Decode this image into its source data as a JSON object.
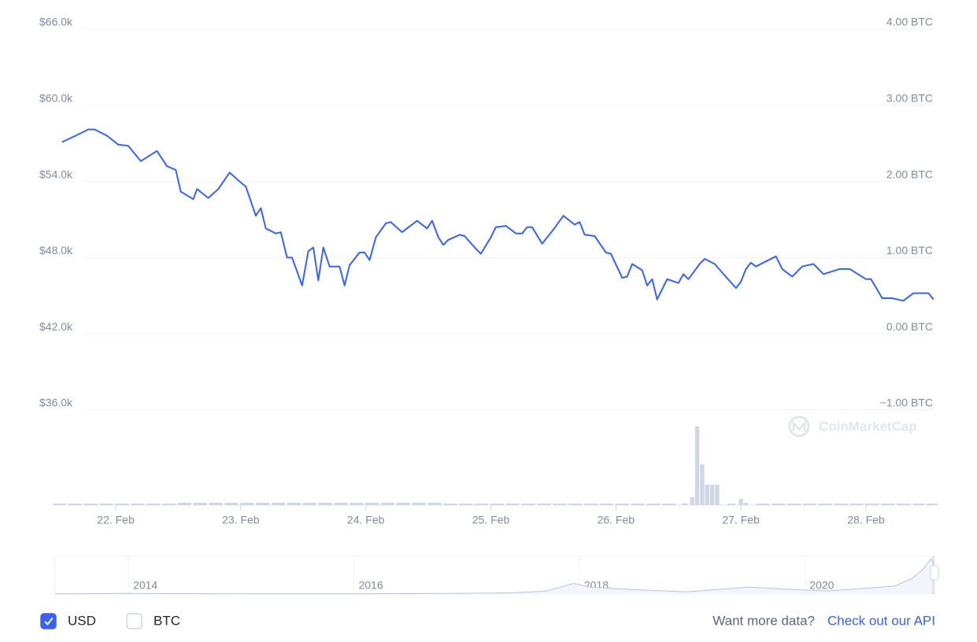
{
  "chart_data": [
    {
      "type": "line",
      "x": [
        21.57,
        21.7,
        21.78,
        21.83,
        21.93,
        22.02,
        22.1,
        22.2,
        22.33,
        22.41,
        22.48,
        22.52,
        22.62,
        22.65,
        22.74,
        22.82,
        22.91,
        22.99,
        23.04,
        23.12,
        23.16,
        23.2,
        23.28,
        23.32,
        23.37,
        23.41,
        23.49,
        23.54,
        23.58,
        23.62,
        23.66,
        23.71,
        23.79,
        23.83,
        23.87,
        23.95,
        23.99,
        24.03,
        24.08,
        24.16,
        24.2,
        24.29,
        24.41,
        24.49,
        24.53,
        24.58,
        24.62,
        24.66,
        24.75,
        24.79,
        24.87,
        24.92,
        25.0,
        25.04,
        25.12,
        25.2,
        25.25,
        25.29,
        25.33,
        25.41,
        25.5,
        25.58,
        25.67,
        25.71,
        25.75,
        25.83,
        25.92,
        25.96,
        26.05,
        26.09,
        26.13,
        26.21,
        26.25,
        26.29,
        26.33,
        26.41,
        26.5,
        26.54,
        26.58,
        26.67,
        26.71,
        26.79,
        26.87,
        26.96,
        27.0,
        27.04,
        27.08,
        27.12,
        27.2,
        27.28,
        27.33,
        27.41,
        27.49,
        27.58,
        27.66,
        27.79,
        27.87,
        28.0,
        28.04,
        28.13,
        28.21,
        28.3,
        28.38,
        28.46,
        28.5,
        28.54
      ],
      "series": [
        {
          "color": "#3861fb",
          "values": [
            57100,
            57700,
            58100,
            58100,
            57600,
            56900,
            56800,
            55600,
            56400,
            55200,
            54900,
            53200,
            52600,
            53400,
            52700,
            53400,
            54700,
            54000,
            53600,
            51300,
            51900,
            50300,
            49900,
            50000,
            48000,
            48000,
            45800,
            48500,
            48800,
            46200,
            48800,
            47300,
            47300,
            45800,
            47400,
            48400,
            48400,
            47800,
            49600,
            50700,
            50800,
            50000,
            50900,
            50300,
            50900,
            49600,
            49000,
            49400,
            49800,
            49700,
            48800,
            48300,
            49600,
            50400,
            50500,
            49900,
            49900,
            50400,
            50400,
            49100,
            50200,
            51300,
            50600,
            50800,
            49800,
            49700,
            48400,
            48300,
            46400,
            46500,
            47500,
            47000,
            45800,
            46300,
            44700,
            46300,
            46000,
            46700,
            46300,
            47500,
            47900,
            47500,
            46600,
            45600,
            46100,
            47100,
            47600,
            47300,
            47700,
            48100,
            47100,
            46500,
            47300,
            47500,
            46700,
            47100,
            47100,
            46300,
            46300,
            44800,
            44800,
            44600,
            45200,
            45200,
            45200,
            44700
          ]
        }
      ],
      "xlim": [
        21.515,
        28.548
      ],
      "xticks": [
        {
          "value": 22,
          "label": "22. Feb"
        },
        {
          "value": 23,
          "label": "23. Feb"
        },
        {
          "value": 24,
          "label": "24. Feb"
        },
        {
          "value": 25,
          "label": "25. Feb"
        },
        {
          "value": 26,
          "label": "26. Feb"
        },
        {
          "value": 27,
          "label": "27. Feb"
        },
        {
          "value": 28,
          "label": "28. Feb"
        }
      ],
      "ylim": [
        36000,
        66000
      ],
      "yticks": [
        {
          "value": 36000,
          "label": "$36.0k"
        },
        {
          "value": 42000,
          "label": "$42.0k"
        },
        {
          "value": 48000,
          "label": "$48.0k"
        },
        {
          "value": 54000,
          "label": "$54.0k"
        },
        {
          "value": 60000,
          "label": "$60.0k"
        },
        {
          "value": 66000,
          "label": "$66.0k"
        }
      ],
      "y2lim": [
        -1,
        4
      ],
      "y2ticks": [
        {
          "value": -1,
          "label": "−1.00 BTC"
        },
        {
          "value": 0,
          "label": "0.00 BTC"
        },
        {
          "value": 1,
          "label": "1.00 BTC"
        },
        {
          "value": 2,
          "label": "2.00 BTC"
        },
        {
          "value": 3,
          "label": "3.00 BTC"
        },
        {
          "value": 4,
          "label": "4.00 BTC"
        }
      ],
      "grid": true
    },
    {
      "type": "bar",
      "color": "#cfd6e4",
      "x": [
        21.55,
        21.675,
        21.8,
        21.925,
        22.05,
        22.175,
        22.3,
        22.425,
        22.55,
        22.675,
        22.8,
        22.925,
        23.05,
        23.175,
        23.3,
        23.425,
        23.55,
        23.675,
        23.8,
        23.925,
        24.05,
        24.175,
        24.3,
        24.425,
        24.55,
        24.675,
        24.8,
        24.925,
        25.05,
        25.175,
        25.3,
        25.425,
        25.55,
        25.675,
        25.8,
        25.925,
        26.05,
        26.175,
        26.3,
        26.425,
        26.55,
        26.61,
        26.65,
        26.69,
        26.73,
        26.77,
        26.81,
        26.925,
        27.0,
        27.04,
        27.175,
        27.3,
        27.425,
        27.55,
        27.675,
        27.8,
        27.925,
        28.05,
        28.175,
        28.3,
        28.425,
        28.53
      ],
      "values": [
        2,
        2,
        2,
        2,
        2,
        2,
        2,
        2,
        3,
        3,
        3,
        3,
        3,
        3,
        3,
        3,
        3,
        3,
        3,
        3,
        3,
        3,
        3,
        3,
        3,
        2,
        2,
        2,
        2,
        2,
        2,
        2,
        2,
        2,
        2,
        2,
        2,
        2,
        2,
        2,
        2,
        10,
        100,
        52,
        26,
        26,
        26,
        2,
        8,
        3,
        2,
        2,
        2,
        2,
        2,
        2,
        2,
        2,
        2,
        2,
        2,
        2
      ],
      "xlim": [
        21.515,
        28.548
      ]
    },
    {
      "type": "area",
      "color": "#b7c2e6",
      "x": [
        2013.35,
        2013.9,
        2014.5,
        2015,
        2016,
        2016.9,
        2017.4,
        2017.7,
        2017.95,
        2018.1,
        2018.5,
        2018.95,
        2019.5,
        2019.9,
        2020.2,
        2020.6,
        2020.8,
        2020.95,
        2021.05,
        2021.12,
        2021.15
      ],
      "values": [
        100,
        900,
        600,
        300,
        400,
        900,
        2000,
        4500,
        17000,
        11000,
        7000,
        3500,
        11000,
        7200,
        5000,
        10000,
        13000,
        25000,
        40000,
        57000,
        45000
      ],
      "xlim": [
        2013.35,
        2021.15
      ],
      "xticks": [
        2014,
        2016,
        2018,
        2020
      ]
    }
  ],
  "controls": {
    "currencies": [
      {
        "label": "USD",
        "checked": true
      },
      {
        "label": "BTC",
        "checked": false
      }
    ],
    "more_data": "Want more data?",
    "api_link": "Check out our API",
    "watermark": "CoinMarketCap"
  }
}
